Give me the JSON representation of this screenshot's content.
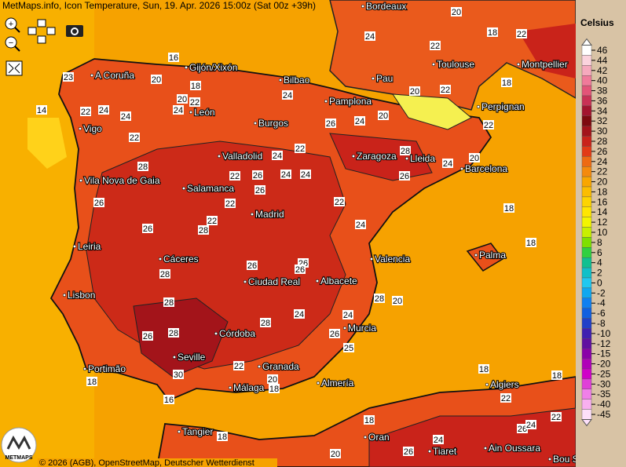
{
  "header": {
    "title": "MetMaps.info, Icon Temperature, Sun, 19. Apr. 2026 15:00z (Sat 00z +39h)"
  },
  "footer": {
    "credit": "© 2026 (AGB), OpenStreetMap, Deutscher Wetterdienst",
    "logo": "METMAPS"
  },
  "cities": [
    "Bordeaux",
    "Toulouse",
    "Montpellier",
    "Pau",
    "A Coruña",
    "Gijón/Xixón",
    "Bilbao",
    "Perpignan",
    "Pamplona",
    "León",
    "Burgos",
    "Vigo",
    "Zaragoza",
    "Lleida",
    "Barcelona",
    "Valladolid",
    "Vila Nova de Gaia",
    "Salamanca",
    "Madrid",
    "Palma",
    "Leiria",
    "Cáceres",
    "Valencia",
    "Ciudad Real",
    "Albacete",
    "Lisbon",
    "Córdoba",
    "Murcia",
    "Seville",
    "Granada",
    "Portimão",
    "Almería",
    "Algiers",
    "Málaga",
    "Tangier",
    "Oran",
    "Tiaret",
    "Ain Oussara",
    "Bou Saada"
  ],
  "contour_labels": [
    20,
    18,
    22,
    24,
    22,
    16,
    20,
    18,
    23,
    22,
    24,
    14,
    20,
    22,
    24,
    24,
    22,
    20,
    18,
    26,
    24,
    20,
    22,
    22,
    24,
    22,
    28,
    24,
    24,
    24,
    22,
    26,
    28,
    26,
    24,
    20,
    26,
    26,
    26,
    22,
    22,
    28,
    22,
    24,
    18,
    18,
    26,
    26,
    26,
    28,
    28,
    24,
    24,
    26,
    28,
    28,
    26,
    25,
    20,
    28,
    18,
    18,
    16,
    20,
    18,
    22,
    30,
    22,
    26,
    24,
    18,
    18,
    20,
    26,
    22,
    18,
    24
  ],
  "legend": {
    "title": "Celsius",
    "labels": [
      46,
      44,
      42,
      40,
      38,
      36,
      34,
      32,
      30,
      28,
      26,
      24,
      22,
      20,
      18,
      16,
      14,
      12,
      10,
      8,
      6,
      4,
      2,
      0,
      -2,
      -4,
      -6,
      -8,
      -10,
      -12,
      -15,
      -20,
      -25,
      -30,
      -35,
      -40,
      -45
    ],
    "colors": [
      "#ffffff",
      "#fbd3dd",
      "#f6a9bd",
      "#f07a9a",
      "#e35478",
      "#c93155",
      "#a3142e",
      "#7e0a0f",
      "#a3141a",
      "#c9231a",
      "#e23a16",
      "#ee6a12",
      "#f58a0c",
      "#f9a600",
      "#fbbd00",
      "#fdd400",
      "#ffe600",
      "#f3f500",
      "#c8f000",
      "#7fe000",
      "#30d040",
      "#10c090",
      "#10c0c8",
      "#20c8f0",
      "#10a8f0",
      "#1080f0",
      "#1060e0",
      "#2040c8",
      "#4020b0",
      "#6010a0",
      "#8a00a8",
      "#b000b8",
      "#d000c8",
      "#e040d8",
      "#f080e8",
      "#f8b0f0",
      "#fde0fa"
    ]
  }
}
